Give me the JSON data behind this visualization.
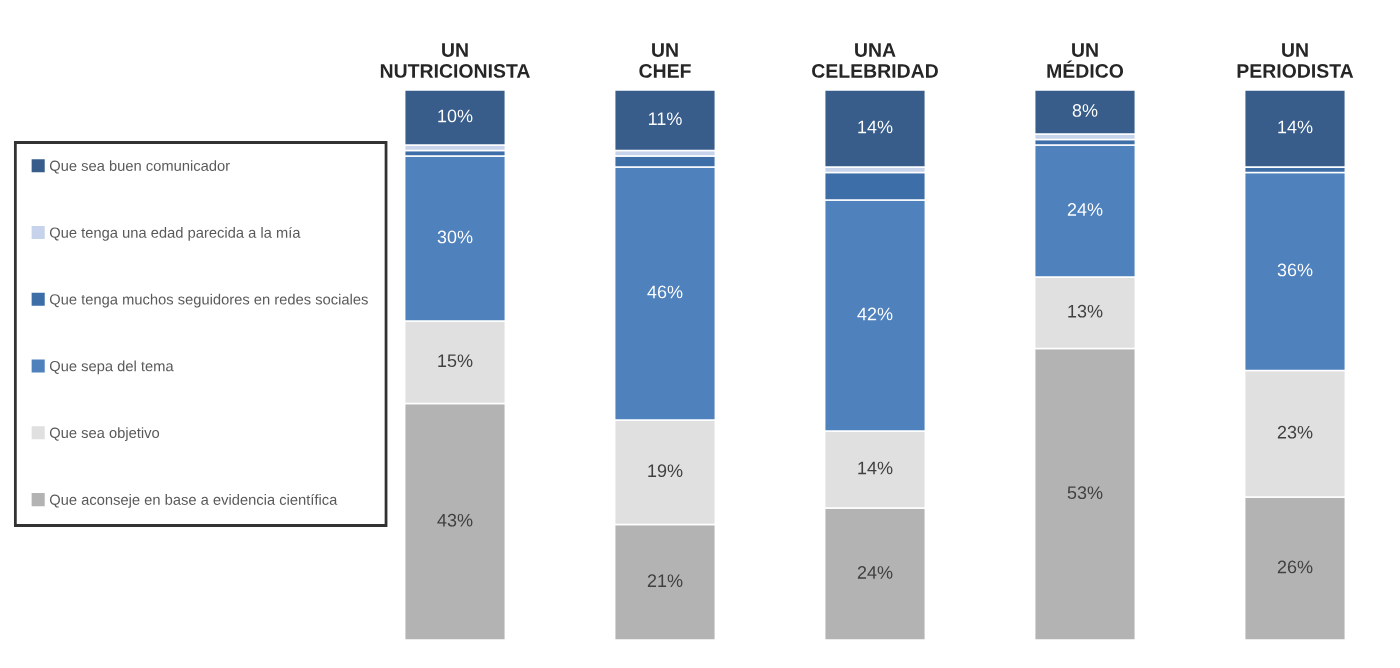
{
  "chart_data": {
    "type": "bar",
    "stacked": true,
    "legend": "left",
    "categories": [
      "UN\nNUTRICIONISTA",
      "UN\nCHEF",
      "UNA\nCELEBRIDAD",
      "UN\nMÉDICO",
      "UN\nPERIODISTA"
    ],
    "series": [
      {
        "name": "Que aconseje en base a evidencia científica",
        "color": "#b3b3b3",
        "values": [
          43,
          21,
          24,
          53,
          26
        ],
        "value_labels": [
          "43%",
          "21%",
          "24%",
          "53%",
          "26%"
        ]
      },
      {
        "name": "Que sea objetivo",
        "color": "#e0e0e0",
        "values": [
          15,
          19,
          14,
          13,
          23
        ],
        "value_labels": [
          "15%",
          "19%",
          "14%",
          "13%",
          "23%"
        ]
      },
      {
        "name": "Que sepa del tema",
        "color": "#4f81bd",
        "values": [
          30,
          46,
          42,
          24,
          36
        ],
        "value_labels": [
          "30%",
          "46%",
          "42%",
          "24%",
          "36%"
        ]
      },
      {
        "name": "Que tenga muchos seguidores en redes sociales",
        "color": "#3e6ea8",
        "values": [
          1,
          2,
          5,
          1,
          1
        ],
        "value_labels": [
          null,
          null,
          null,
          null,
          null
        ]
      },
      {
        "name": "Que tenga una edad parecida a la mía",
        "color": "#c6d3ea",
        "values": [
          1,
          1,
          1,
          1,
          0
        ],
        "value_labels": [
          null,
          null,
          null,
          null,
          null
        ]
      },
      {
        "name": "Que sea buen comunicador",
        "color": "#385d8a",
        "values": [
          10,
          11,
          14,
          8,
          14
        ],
        "value_labels": [
          "10%",
          "11%",
          "14%",
          "8%",
          "14%"
        ]
      }
    ]
  }
}
